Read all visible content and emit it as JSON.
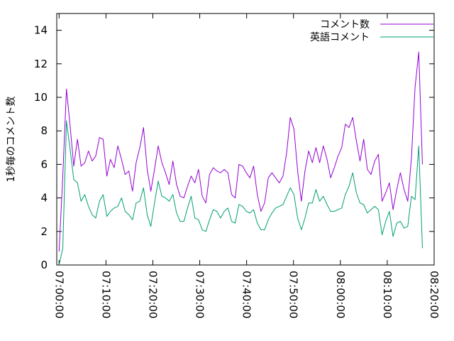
{
  "chart_data": {
    "type": "line",
    "title": "",
    "ylabel": "1秒毎のコメント数",
    "xlabel": "",
    "ylim": [
      0,
      15
    ],
    "yticks": [
      0,
      2,
      4,
      6,
      8,
      10,
      12,
      14
    ],
    "xlim": [
      "06:59:30",
      "08:20:00"
    ],
    "xticks": [
      "07:00:00",
      "07:10:00",
      "07:20:00",
      "07:30:00",
      "07:40:00",
      "07:50:00",
      "08:00:00",
      "08:10:00",
      "08:20:00"
    ],
    "grid": false,
    "legend": "top-right",
    "series": [
      {
        "name": "コメント数",
        "color": "#9400d3",
        "values": [
          0.8,
          5.3,
          10.5,
          8.3,
          5.9,
          7.5,
          5.9,
          6.1,
          6.8,
          6.2,
          6.5,
          7.6,
          7.5,
          5.3,
          6.3,
          5.8,
          7.1,
          6.3,
          5.4,
          5.6,
          4.4,
          6.1,
          7.0,
          8.2,
          5.7,
          4.4,
          5.7,
          7.1,
          6.1,
          5.5,
          4.8,
          6.2,
          4.8,
          4.1,
          4.0,
          4.7,
          5.3,
          4.9,
          5.7,
          4.1,
          3.7,
          5.4,
          5.8,
          5.6,
          5.5,
          5.7,
          5.5,
          4.2,
          4.0,
          6.0,
          5.9,
          5.5,
          5.2,
          5.9,
          4.2,
          3.2,
          3.7,
          5.2,
          5.5,
          5.2,
          4.9,
          5.3,
          6.7,
          8.8,
          8.1,
          5.6,
          3.8,
          5.6,
          6.8,
          6.1,
          7.0,
          6.1,
          7.1,
          6.3,
          5.2,
          5.8,
          6.5,
          7.0,
          8.4,
          8.2,
          8.8,
          7.4,
          6.2,
          7.5,
          5.7,
          5.4,
          6.2,
          6.6,
          3.8,
          4.3,
          4.9,
          3.3,
          4.5,
          5.5,
          4.5,
          3.8,
          6.4,
          10.6,
          12.7,
          6.0
        ]
      },
      {
        "name": "英語コメント",
        "color": "#009e73",
        "values": [
          0.0,
          1.0,
          8.6,
          6.9,
          5.1,
          4.9,
          3.8,
          4.2,
          3.5,
          3.0,
          2.8,
          3.8,
          4.2,
          2.9,
          3.2,
          3.4,
          3.5,
          4.0,
          3.2,
          3.0,
          2.7,
          3.7,
          3.8,
          4.6,
          3.0,
          2.3,
          3.7,
          5.0,
          4.1,
          4.0,
          3.8,
          4.2,
          3.1,
          2.6,
          2.6,
          3.4,
          4.1,
          2.8,
          2.7,
          2.1,
          2.0,
          2.7,
          3.3,
          3.2,
          2.8,
          3.2,
          3.4,
          2.6,
          2.5,
          3.6,
          3.5,
          3.2,
          3.1,
          3.3,
          2.5,
          2.1,
          2.1,
          2.7,
          3.1,
          3.4,
          3.5,
          3.6,
          4.1,
          4.6,
          4.2,
          2.8,
          2.1,
          2.8,
          3.7,
          3.7,
          4.5,
          3.8,
          4.1,
          3.6,
          3.2,
          3.2,
          3.3,
          3.4,
          4.2,
          4.7,
          5.5,
          4.3,
          3.7,
          3.6,
          3.1,
          3.3,
          3.5,
          3.3,
          1.8,
          2.6,
          3.2,
          1.7,
          2.5,
          2.6,
          2.2,
          2.3,
          4.1,
          3.9,
          7.1,
          1.0
        ]
      }
    ]
  }
}
